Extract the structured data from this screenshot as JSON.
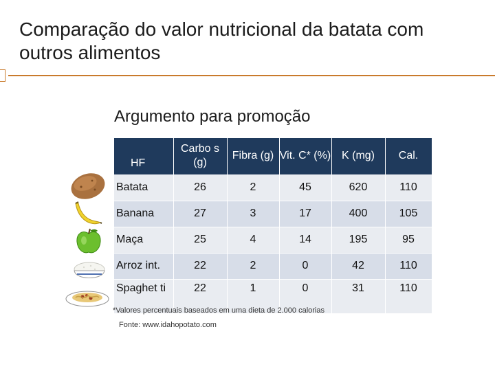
{
  "slide": {
    "title": "Comparação do valor nutricional da batata com outros alimentos",
    "subtitle": "Argumento para promoção",
    "footnote": "*Valores percentuais baseados em uma dieta de 2.000 calorias",
    "source": "Fonte: www.idahopotato.com",
    "colors": {
      "accent": "#c97a2c",
      "header_bg": "#1f3a5c",
      "row_bg": "#e9ecf1",
      "row_alt_bg": "#d7dde8"
    }
  },
  "table": {
    "headers": [
      "HF",
      "Carbo s (g)",
      "Fibra (g)",
      "Vit. C* (%)",
      "K (mg)",
      "Cal."
    ],
    "rows": [
      [
        "Batata",
        "26",
        "2",
        "45",
        "620",
        "110"
      ],
      [
        "Banana",
        "27",
        "3",
        "17",
        "400",
        "105"
      ],
      [
        "Maça",
        "25",
        "4",
        "14",
        "195",
        "95"
      ],
      [
        "Arroz int.",
        "22",
        "2",
        "0",
        "42",
        "110"
      ],
      [
        "Spaghet ti",
        "22",
        "1",
        "0",
        "31",
        "110"
      ]
    ]
  },
  "illustrations": [
    "potato-icon",
    "banana-icon",
    "apple-icon",
    "rice-bowl-icon",
    "spaghetti-plate-icon"
  ]
}
